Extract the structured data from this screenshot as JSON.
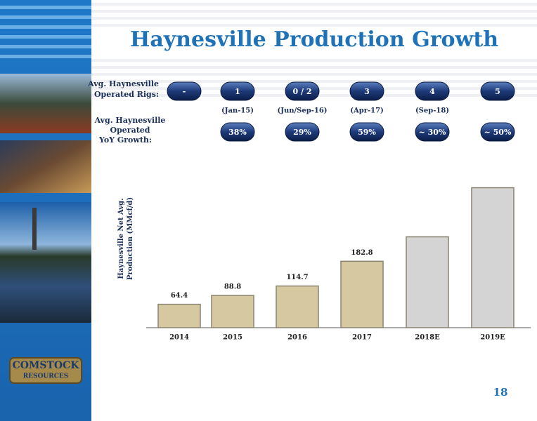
{
  "title": "Haynesville Production Growth",
  "page_number": "18",
  "logo": [
    "COMSTOCK",
    "RESOURCES"
  ],
  "rigs": {
    "label": [
      "Avg. Haynesville",
      "Operated Rigs:"
    ],
    "values": [
      "-",
      "1",
      "0 / 2",
      "3",
      "4",
      "5"
    ],
    "dates": [
      null,
      "(Jan-15)",
      "(Jun/Sep-16)",
      "(Apr-17)",
      "(Sep-18)",
      null
    ]
  },
  "growth": {
    "label": [
      "Avg. Haynesville",
      "Operated",
      "YoY Growth:"
    ],
    "values": [
      null,
      "38%",
      "29%",
      "59%",
      "~ 30%",
      "~ 50%"
    ]
  },
  "chart_data": {
    "type": "bar",
    "y_label": [
      "Haynesville Net Avg.",
      "Production (MMcf/d)"
    ],
    "categories": [
      "2014",
      "2015",
      "2016",
      "2017",
      "2018E",
      "2019E"
    ],
    "values": [
      64.4,
      88.8,
      114.7,
      182.8,
      250,
      385
    ],
    "value_labels": [
      "64.4",
      "88.8",
      "114.7",
      "182.8",
      null,
      null
    ],
    "colors": [
      "#d6c9a2",
      "#d6c9a2",
      "#d6c9a2",
      "#d6c9a2",
      "#d4d4d4",
      "#d4d4d4"
    ]
  }
}
